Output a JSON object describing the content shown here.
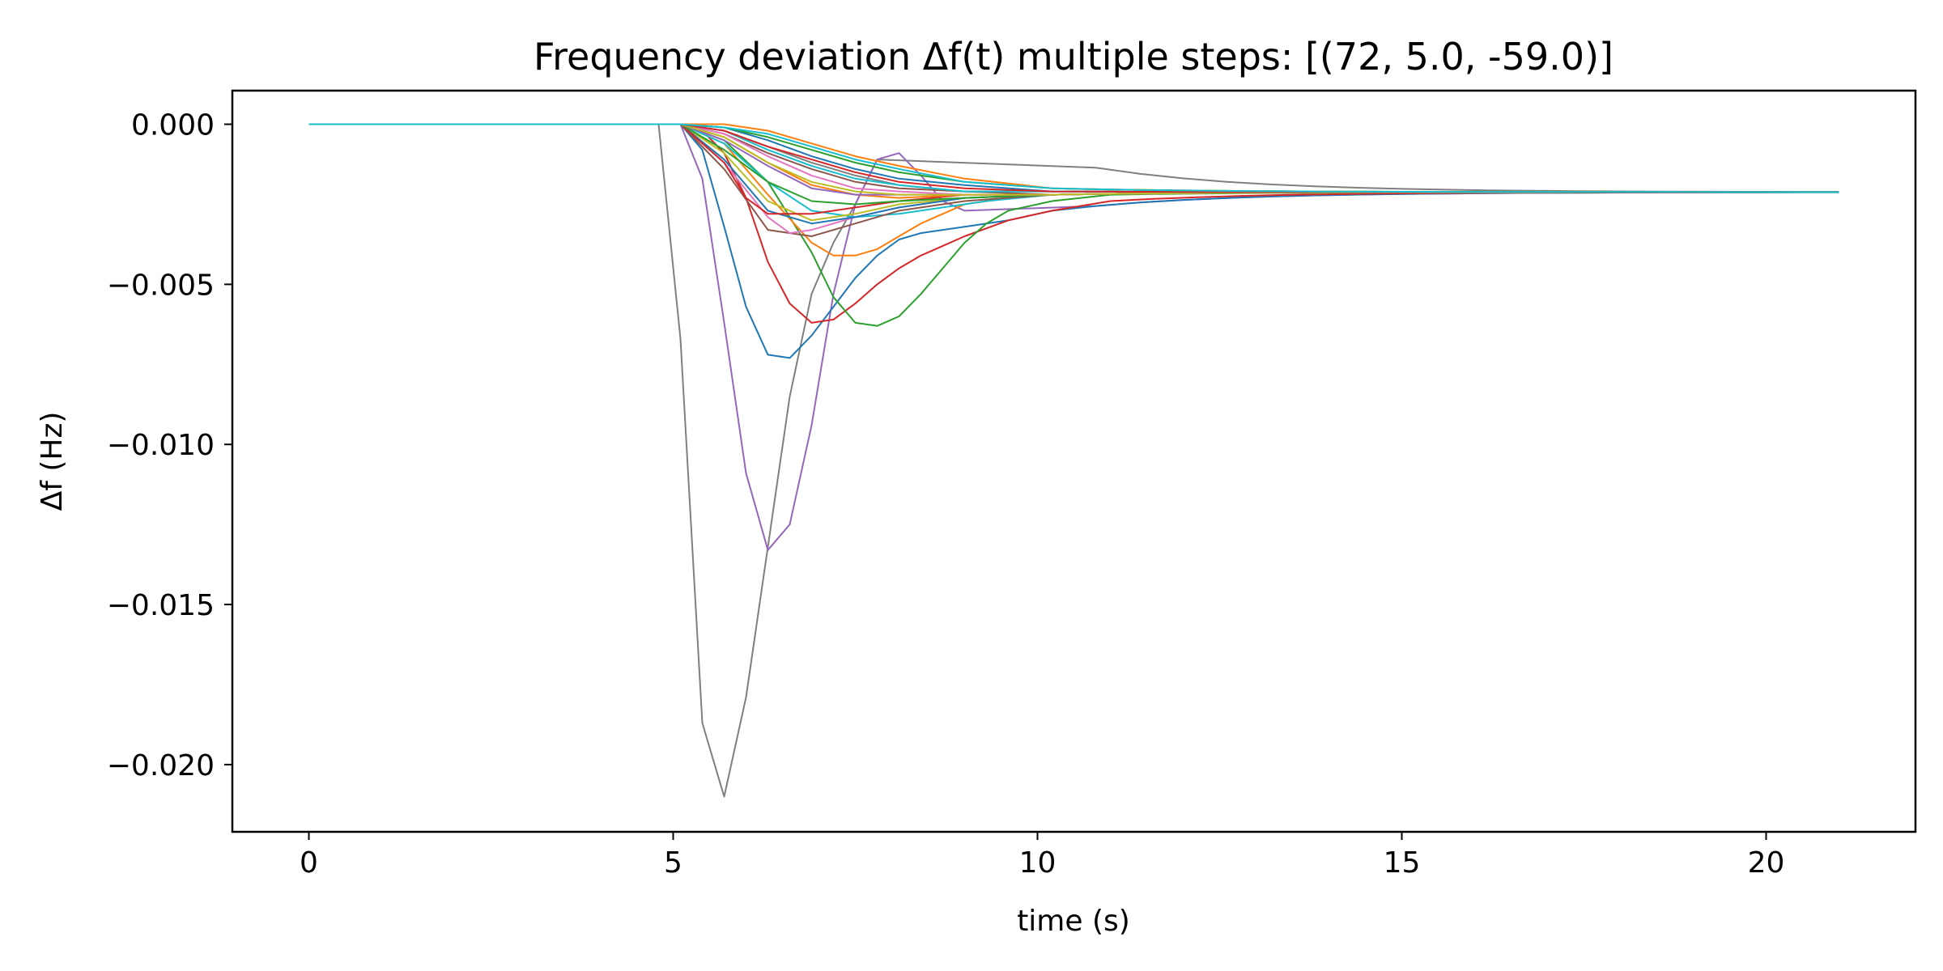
{
  "chart_data": {
    "type": "line",
    "title": "Frequency deviation Δf(t)  multiple steps: [(72, 5.0, -59.0)]",
    "xlabel": "time (s)",
    "ylabel": "Δf (Hz)",
    "xlim": [
      -1.05,
      22.05
    ],
    "ylim": [
      -0.0221,
      0.00105
    ],
    "xticks": [
      0,
      5,
      10,
      15,
      20
    ],
    "xtick_labels": [
      "0",
      "5",
      "10",
      "15",
      "20"
    ],
    "yticks": [
      0.0,
      -0.005,
      -0.01,
      -0.015,
      -0.02
    ],
    "ytick_labels": [
      "0.000",
      "−0.005",
      "−0.010",
      "−0.015",
      "−0.020"
    ],
    "grid": false,
    "legend": "none",
    "steady_state": -0.00212,
    "baseline_x": [
      0,
      4.8
    ],
    "baseline_y": 0.0,
    "end_x": 21.0,
    "series": [
      {
        "color": "#7f7f7f",
        "x": [
          4.8,
          5.1,
          5.4,
          5.7,
          6.0,
          6.3,
          6.6,
          6.9,
          7.2,
          7.5,
          7.8
        ],
        "y": [
          0.0,
          -0.0067,
          -0.0187,
          -0.021,
          -0.0179,
          -0.0132,
          -0.0085,
          -0.0053,
          -0.0037,
          -0.0025,
          -0.0011
        ]
      },
      {
        "color": "#9467bd",
        "x": [
          5.1,
          5.4,
          5.7,
          6.0,
          6.3,
          6.6,
          6.9,
          7.2,
          7.5,
          7.8,
          8.1,
          8.4,
          8.7,
          9.0
        ],
        "y": [
          0.0,
          -0.0017,
          -0.0062,
          -0.0109,
          -0.0133,
          -0.0125,
          -0.0094,
          -0.0053,
          -0.0025,
          -0.0011,
          -0.0009,
          -0.0016,
          -0.0024,
          -0.0027
        ]
      },
      {
        "color": "#1f77b4",
        "x": [
          5.1,
          5.4,
          5.7,
          6.0,
          6.3,
          6.6,
          6.9,
          7.2,
          7.5,
          7.8,
          8.1,
          8.4,
          8.7,
          9.0,
          9.6,
          10.2
        ],
        "y": [
          0.0,
          -0.0008,
          -0.0032,
          -0.0057,
          -0.0072,
          -0.0073,
          -0.0066,
          -0.0057,
          -0.0048,
          -0.0041,
          -0.0036,
          -0.0034,
          -0.0033,
          -0.0032,
          -0.003,
          -0.0027
        ]
      },
      {
        "color": "#d62728",
        "x": [
          5.1,
          5.4,
          5.7,
          6.0,
          6.3,
          6.6,
          6.9,
          7.2,
          7.5,
          7.8,
          8.1,
          8.4,
          8.7,
          9.0,
          9.6,
          10.2,
          11.0
        ],
        "y": [
          0.0,
          -0.0002,
          -0.0009,
          -0.0023,
          -0.0043,
          -0.0056,
          -0.0062,
          -0.0061,
          -0.0056,
          -0.005,
          -0.0045,
          -0.0041,
          -0.0038,
          -0.0035,
          -0.003,
          -0.0027,
          -0.0024
        ]
      },
      {
        "color": "#2ca02c",
        "x": [
          5.1,
          5.7,
          6.3,
          6.9,
          7.2,
          7.5,
          7.8,
          8.1,
          8.4,
          8.7,
          9.0,
          9.3,
          9.6,
          10.2,
          11.0
        ],
        "y": [
          0.0,
          -0.0005,
          -0.0018,
          -0.004,
          -0.0054,
          -0.0062,
          -0.0063,
          -0.006,
          -0.0053,
          -0.0045,
          -0.0037,
          -0.0031,
          -0.0027,
          -0.0024,
          -0.0022
        ]
      },
      {
        "color": "#ff7f0e",
        "x": [
          5.1,
          5.7,
          6.3,
          6.9,
          7.2,
          7.5,
          7.8,
          8.1,
          8.4,
          8.7,
          9.0,
          9.6,
          10.2
        ],
        "y": [
          0.0,
          -0.0006,
          -0.0022,
          -0.0037,
          -0.0041,
          -0.0041,
          -0.0039,
          -0.0035,
          -0.0031,
          -0.0028,
          -0.0025,
          -0.0023,
          -0.0022
        ]
      },
      {
        "color": "#17becf",
        "x": [
          5.1,
          5.7,
          6.3,
          6.9,
          7.5,
          8.1,
          8.7,
          9.3,
          10.2
        ],
        "y": [
          0.0,
          -0.0006,
          -0.0018,
          -0.0027,
          -0.0029,
          -0.0028,
          -0.0026,
          -0.0024,
          -0.0022
        ]
      },
      {
        "color": "#8c564b",
        "x": [
          5.1,
          5.7,
          6.3,
          6.9,
          7.5,
          8.1,
          9.0,
          10.2
        ],
        "y": [
          0.0,
          -0.0014,
          -0.0033,
          -0.0035,
          -0.0031,
          -0.0027,
          -0.0024,
          -0.0022
        ]
      },
      {
        "color": "#e377c2",
        "x": [
          5.1,
          5.7,
          6.3,
          6.6,
          6.9,
          7.5,
          8.1,
          9.0,
          10.2
        ],
        "y": [
          0.0,
          -0.0012,
          -0.0029,
          -0.0034,
          -0.0033,
          -0.0029,
          -0.0026,
          -0.0023,
          -0.0022
        ]
      },
      {
        "color": "#bcbd22",
        "x": [
          5.1,
          5.7,
          6.3,
          6.9,
          7.5,
          8.1,
          9.0,
          10.2
        ],
        "y": [
          0.0,
          -0.0009,
          -0.0024,
          -0.003,
          -0.0028,
          -0.0025,
          -0.0023,
          -0.0022
        ]
      },
      {
        "color": "#1f77b4",
        "x": [
          5.1,
          5.7,
          6.3,
          6.9,
          7.5,
          8.1,
          9.0,
          10.2
        ],
        "y": [
          0.0,
          -0.0011,
          -0.0027,
          -0.0031,
          -0.0029,
          -0.0026,
          -0.0023,
          -0.0022
        ]
      },
      {
        "color": "#d62728",
        "x": [
          5.1,
          5.7,
          6.0,
          6.3,
          6.9,
          7.5,
          8.1,
          9.0,
          10.2
        ],
        "y": [
          0.0,
          -0.0012,
          -0.0023,
          -0.0028,
          -0.0028,
          -0.0026,
          -0.0024,
          -0.0022,
          -0.0022
        ]
      },
      {
        "color": "#2ca02c",
        "x": [
          5.1,
          5.7,
          6.3,
          6.9,
          7.5,
          8.1,
          9.0,
          10.2
        ],
        "y": [
          0.0,
          -0.0008,
          -0.0018,
          -0.0024,
          -0.0025,
          -0.0024,
          -0.0023,
          -0.0022
        ]
      },
      {
        "color": "#ff7f0e",
        "x": [
          5.1,
          5.7,
          6.3,
          6.9,
          7.5,
          8.1,
          9.0,
          10.2
        ],
        "y": [
          0.0,
          -0.0004,
          -0.0012,
          -0.0019,
          -0.0022,
          -0.0023,
          -0.0022,
          -0.0022
        ]
      },
      {
        "color": "#9467bd",
        "x": [
          5.1,
          5.7,
          6.3,
          6.9,
          7.5,
          8.1,
          9.0,
          10.2
        ],
        "y": [
          0.0,
          -0.0005,
          -0.0013,
          -0.002,
          -0.0022,
          -0.0022,
          -0.0022,
          -0.0022
        ]
      },
      {
        "color": "#8c564b",
        "x": [
          5.1,
          5.7,
          6.3,
          6.9,
          7.5,
          8.1,
          9.0,
          10.2
        ],
        "y": [
          0.0,
          -0.0003,
          -0.0009,
          -0.0014,
          -0.0018,
          -0.002,
          -0.0021,
          -0.0022
        ]
      },
      {
        "color": "#e377c2",
        "x": [
          5.1,
          5.7,
          6.3,
          6.9,
          7.5,
          8.1,
          9.0,
          10.2
        ],
        "y": [
          0.0,
          -0.0003,
          -0.001,
          -0.0016,
          -0.002,
          -0.0021,
          -0.0022,
          -0.0022
        ]
      },
      {
        "color": "#7f7f7f",
        "x": [
          5.1,
          5.7,
          6.3,
          6.9,
          7.5,
          8.1,
          9.0,
          10.2
        ],
        "y": [
          0.0,
          -0.0002,
          -0.0007,
          -0.0012,
          -0.0016,
          -0.0019,
          -0.0021,
          -0.0021
        ]
      },
      {
        "color": "#bcbd22",
        "x": [
          5.1,
          5.7,
          6.3,
          6.9,
          7.5,
          8.1,
          9.0,
          10.2
        ],
        "y": [
          0.0,
          -0.0004,
          -0.0012,
          -0.0018,
          -0.0021,
          -0.0022,
          -0.0022,
          -0.0022
        ]
      },
      {
        "color": "#17becf",
        "x": [
          5.1,
          5.7,
          6.3,
          6.9,
          7.5,
          8.1,
          9.0,
          10.2
        ],
        "y": [
          0.0,
          -0.0002,
          -0.0008,
          -0.0013,
          -0.0017,
          -0.0019,
          -0.0021,
          -0.0021
        ]
      },
      {
        "color": "#1f77b4",
        "x": [
          5.1,
          5.7,
          6.3,
          6.9,
          7.5,
          8.1,
          9.0,
          10.2
        ],
        "y": [
          0.0,
          -0.0001,
          -0.0005,
          -0.001,
          -0.0014,
          -0.0017,
          -0.0019,
          -0.0021
        ]
      },
      {
        "color": "#d62728",
        "x": [
          5.1,
          5.7,
          6.3,
          6.9,
          7.5,
          8.1,
          9.0,
          10.2
        ],
        "y": [
          0.0,
          -0.0002,
          -0.0007,
          -0.0011,
          -0.0015,
          -0.0018,
          -0.002,
          -0.0021
        ]
      },
      {
        "color": "#2ca02c",
        "x": [
          5.1,
          5.7,
          6.3,
          6.9,
          7.5,
          8.1,
          9.0,
          10.2
        ],
        "y": [
          0.0,
          -0.0001,
          -0.0004,
          -0.0008,
          -0.0012,
          -0.0015,
          -0.0018,
          -0.002
        ]
      },
      {
        "color": "#ff7f0e",
        "x": [
          5.1,
          5.7,
          6.3,
          6.9,
          7.5,
          8.1,
          9.0,
          10.2
        ],
        "y": [
          0.0,
          0.0,
          -0.0002,
          -0.0006,
          -0.001,
          -0.0013,
          -0.0017,
          -0.002
        ]
      },
      {
        "color": "#17becf",
        "x": [
          5.1,
          5.7,
          6.3,
          6.9,
          7.5,
          8.1,
          9.0,
          10.2
        ],
        "y": [
          0.0,
          -0.0001,
          -0.0003,
          -0.0007,
          -0.0011,
          -0.0014,
          -0.0018,
          -0.002
        ]
      }
    ]
  }
}
